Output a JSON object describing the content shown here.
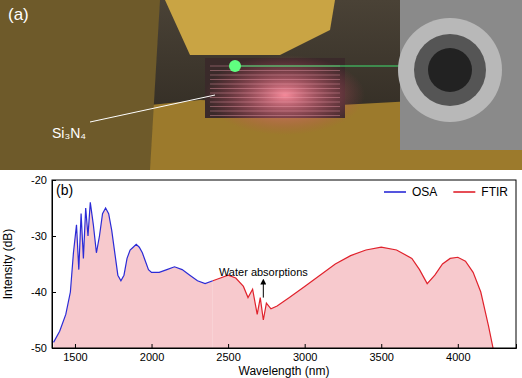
{
  "panel_a": {
    "label": "(a)",
    "sample_label": "Si₃N₄"
  },
  "chart_data": {
    "type": "line",
    "panel_label": "(b)",
    "x_label": "Wavelength (nm)",
    "y_label": "Intensity (dB)",
    "xlim": [
      1350,
      4380
    ],
    "xticks": [
      1500,
      2000,
      2500,
      3000,
      3500,
      4000
    ],
    "ylim": [
      -50,
      -20
    ],
    "yticks": [
      -20,
      -30,
      -40,
      -50
    ],
    "legend": "top-right",
    "annotation": {
      "text": "Water absorptions",
      "x": 2730,
      "y": -41
    },
    "series": [
      {
        "name": "OSA",
        "color": "#2b2bd6",
        "x": [
          1360,
          1400,
          1440,
          1470,
          1490,
          1510,
          1525,
          1540,
          1555,
          1570,
          1585,
          1600,
          1620,
          1640,
          1660,
          1680,
          1700,
          1720,
          1740,
          1760,
          1780,
          1800,
          1820,
          1840,
          1860,
          1880,
          1900,
          1920,
          1940,
          1960,
          1980,
          2000,
          2050,
          2100,
          2150,
          2200,
          2250,
          2300,
          2350,
          2400
        ],
        "values": [
          -49,
          -47,
          -44,
          -40,
          -33,
          -28,
          -36,
          -26,
          -34,
          -25,
          -30,
          -24,
          -28,
          -33,
          -30,
          -26,
          -25,
          -26,
          -29,
          -33,
          -37,
          -38,
          -37,
          -34,
          -32.5,
          -32,
          -31.5,
          -32,
          -33,
          -34.5,
          -36,
          -36.5,
          -36.5,
          -36,
          -35.5,
          -36,
          -37,
          -38,
          -38.5,
          -38
        ]
      },
      {
        "name": "FTIR",
        "color": "#e0222c",
        "x": [
          2400,
          2450,
          2500,
          2550,
          2600,
          2630,
          2660,
          2690,
          2710,
          2730,
          2750,
          2780,
          2820,
          2900,
          3000,
          3100,
          3200,
          3300,
          3400,
          3500,
          3600,
          3700,
          3750,
          3800,
          3850,
          3900,
          3950,
          4000,
          4050,
          4100,
          4150,
          4200,
          4230
        ],
        "values": [
          -38,
          -37.5,
          -37,
          -37.5,
          -39,
          -41,
          -39.5,
          -44,
          -41,
          -45,
          -42,
          -43,
          -42.5,
          -41,
          -39,
          -37,
          -35,
          -33.5,
          -32.5,
          -32,
          -32.5,
          -34,
          -36,
          -38.5,
          -37,
          -35,
          -34,
          -33.8,
          -34.5,
          -36.5,
          -40,
          -46,
          -50
        ]
      }
    ]
  }
}
